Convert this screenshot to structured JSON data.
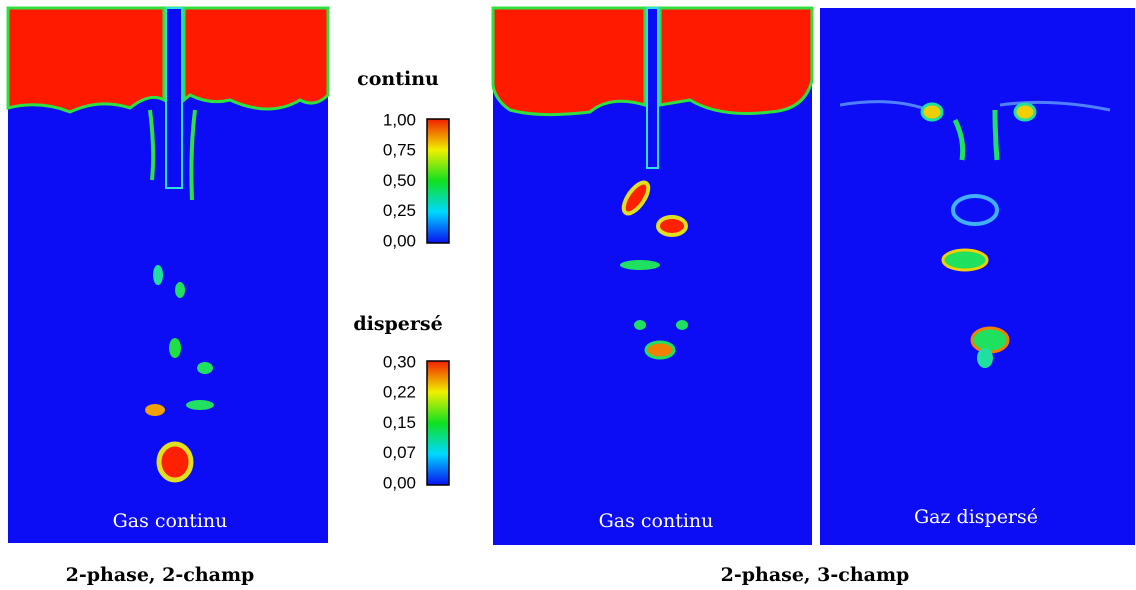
{
  "panels": [
    {
      "label": "Gas continu"
    },
    {
      "label": "Gas continu"
    },
    {
      "label": "Gaz dispersé"
    }
  ],
  "colorbars": [
    {
      "title": "continu",
      "ticks": [
        "1,00",
        "0,75",
        "0,50",
        "0,25",
        "0,00"
      ]
    },
    {
      "title": "dispersé",
      "ticks": [
        "0,30",
        "0,22",
        "0,15",
        "0,07",
        "0,00"
      ]
    }
  ],
  "captions": [
    "2-phase, 2-champ",
    "2-phase, 3-champ"
  ]
}
